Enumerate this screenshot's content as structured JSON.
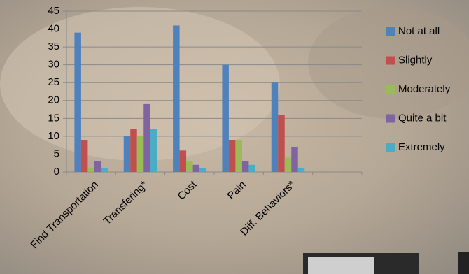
{
  "chart_data": {
    "type": "bar",
    "categories": [
      "Find Transportation",
      "Transfering*",
      "Cost",
      "Pain",
      "Diff. Behaviors*",
      null
    ],
    "series": [
      {
        "name": "Not at all",
        "color": "#4f81bd",
        "values": [
          39,
          10,
          41,
          30,
          25,
          null
        ]
      },
      {
        "name": "Slightly",
        "color": "#c0504d",
        "values": [
          9,
          12,
          6,
          9,
          16,
          null
        ]
      },
      {
        "name": "Moderately",
        "color": "#9bbb59",
        "values": [
          1,
          10,
          3,
          9,
          4,
          null
        ]
      },
      {
        "name": "Quite a bit",
        "color": "#8064a2",
        "values": [
          3,
          19,
          2,
          3,
          7,
          null
        ]
      },
      {
        "name": "Extremely",
        "color": "#4bacc6",
        "values": [
          1,
          12,
          1,
          2,
          1,
          null
        ]
      }
    ],
    "ylim": [
      0,
      45
    ],
    "yticks": [
      0,
      5,
      10,
      15,
      20,
      25,
      30,
      35,
      40,
      45
    ],
    "grid": true,
    "legend": "right"
  }
}
